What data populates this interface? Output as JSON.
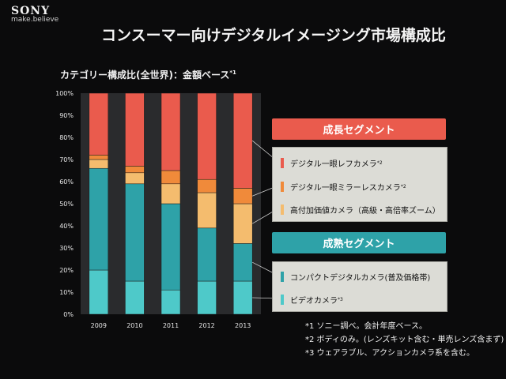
{
  "brand": {
    "logo": "SONY",
    "tagline": "make.believe"
  },
  "slide_title": "コンスーマー向けデジタルイメージング市場構成比",
  "chart_subtitle": "カテゴリー構成比(全世界)：金額ベース",
  "chart_subtitle_note": "*1",
  "segments": {
    "growth_label": "成長セグメント",
    "mature_label": "成熟セグメント"
  },
  "legend": [
    {
      "label": "デジタル一眼レフカメラ",
      "note": "*2"
    },
    {
      "label": "デジタル一眼ミラーレスカメラ",
      "note": "*2"
    },
    {
      "label": "高付加価値カメラ（高級・高倍率ズーム）",
      "note": ""
    },
    {
      "label": "コンパクトデジタルカメラ(普及価格帯)",
      "note": ""
    },
    {
      "label": "ビデオカメラ",
      "note": "*3"
    }
  ],
  "notes": [
    "*1 ソニー調べ。会計年度ベース。",
    "*2 ボディのみ。(レンズキット含む・単売レンズ含まず)",
    "*3 ウェアラブル、アクションカメラ系を含む。"
  ],
  "colors": {
    "dslr": "#ea5b4d",
    "mirrorless": "#f08a3a",
    "premium": "#f4bc6e",
    "compact": "#2ea2a8",
    "video": "#4ec9c9",
    "growth_header": "#ea5b4d",
    "mature_header": "#2ea2a8",
    "background": "#0b0b0c",
    "plot_bg": "#2a2b2d"
  },
  "chart_data": {
    "type": "bar",
    "stacked": true,
    "title": "カテゴリー構成比(全世界)：金額ベース",
    "xlabel": "",
    "ylabel": "",
    "ylim": [
      0,
      100
    ],
    "y_ticks": [
      "0%",
      "10%",
      "20%",
      "30%",
      "40%",
      "50%",
      "60%",
      "70%",
      "80%",
      "90%",
      "100%"
    ],
    "categories": [
      "2009",
      "2010",
      "2011",
      "2012",
      "2013"
    ],
    "series": [
      {
        "name": "ビデオカメラ",
        "color_key": "video",
        "values": [
          20,
          15,
          11,
          15,
          15
        ]
      },
      {
        "name": "コンパクトデジタルカメラ(普及価格帯)",
        "color_key": "compact",
        "values": [
          46,
          44,
          39,
          24,
          17
        ]
      },
      {
        "name": "高付加価値カメラ（高級・高倍率ズーム）",
        "color_key": "premium",
        "values": [
          4,
          5,
          9,
          16,
          18
        ]
      },
      {
        "name": "デジタル一眼ミラーレスカメラ",
        "color_key": "mirrorless",
        "values": [
          2,
          3,
          6,
          6,
          7
        ]
      },
      {
        "name": "デジタル一眼レフカメラ",
        "color_key": "dslr",
        "values": [
          28,
          33,
          35,
          39,
          43
        ]
      }
    ]
  }
}
